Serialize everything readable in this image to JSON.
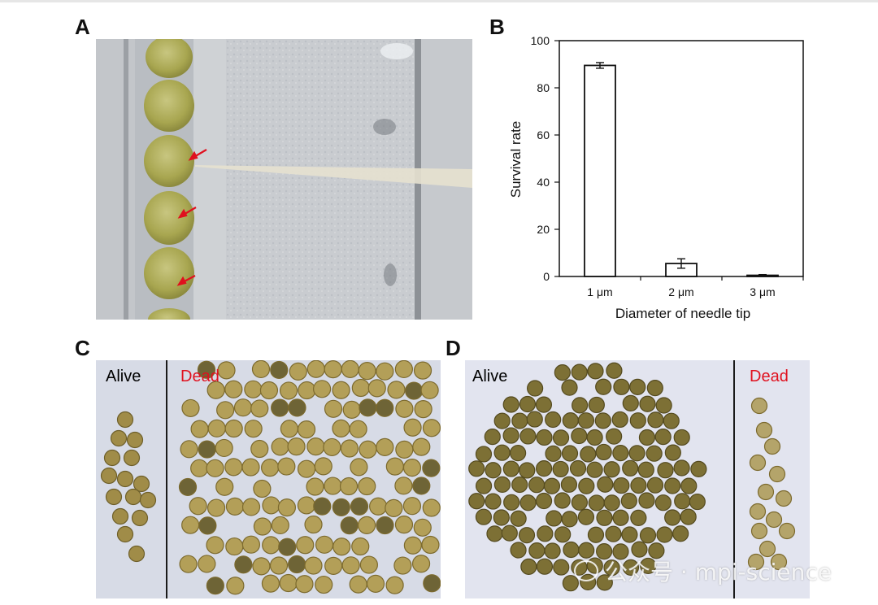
{
  "figure": {
    "panels": {
      "A": {
        "letter": "A"
      },
      "B": {
        "letter": "B"
      },
      "C": {
        "letter": "C",
        "left_label": "Alive",
        "right_label": "Dead"
      },
      "D": {
        "letter": "D",
        "left_label": "Alive",
        "right_label": "Dead"
      }
    },
    "colors": {
      "alive_label": "#111111",
      "dead_label": "#e0101e",
      "arrow": "#e0101e"
    },
    "watermark": {
      "text": "公众号 · mpi-science"
    }
  },
  "chart_data": {
    "type": "bar",
    "categories": [
      "1 μm",
      "2 μm",
      "3 μm"
    ],
    "values": [
      89.5,
      5.5,
      0.5
    ],
    "errors": [
      1.2,
      2.0,
      0.3
    ],
    "xlabel": "Diameter of needle tip",
    "ylabel": "Survival rate",
    "ylim": [
      0,
      100
    ],
    "yticks": [
      0,
      20,
      40,
      60,
      80,
      100
    ],
    "grid": false
  }
}
